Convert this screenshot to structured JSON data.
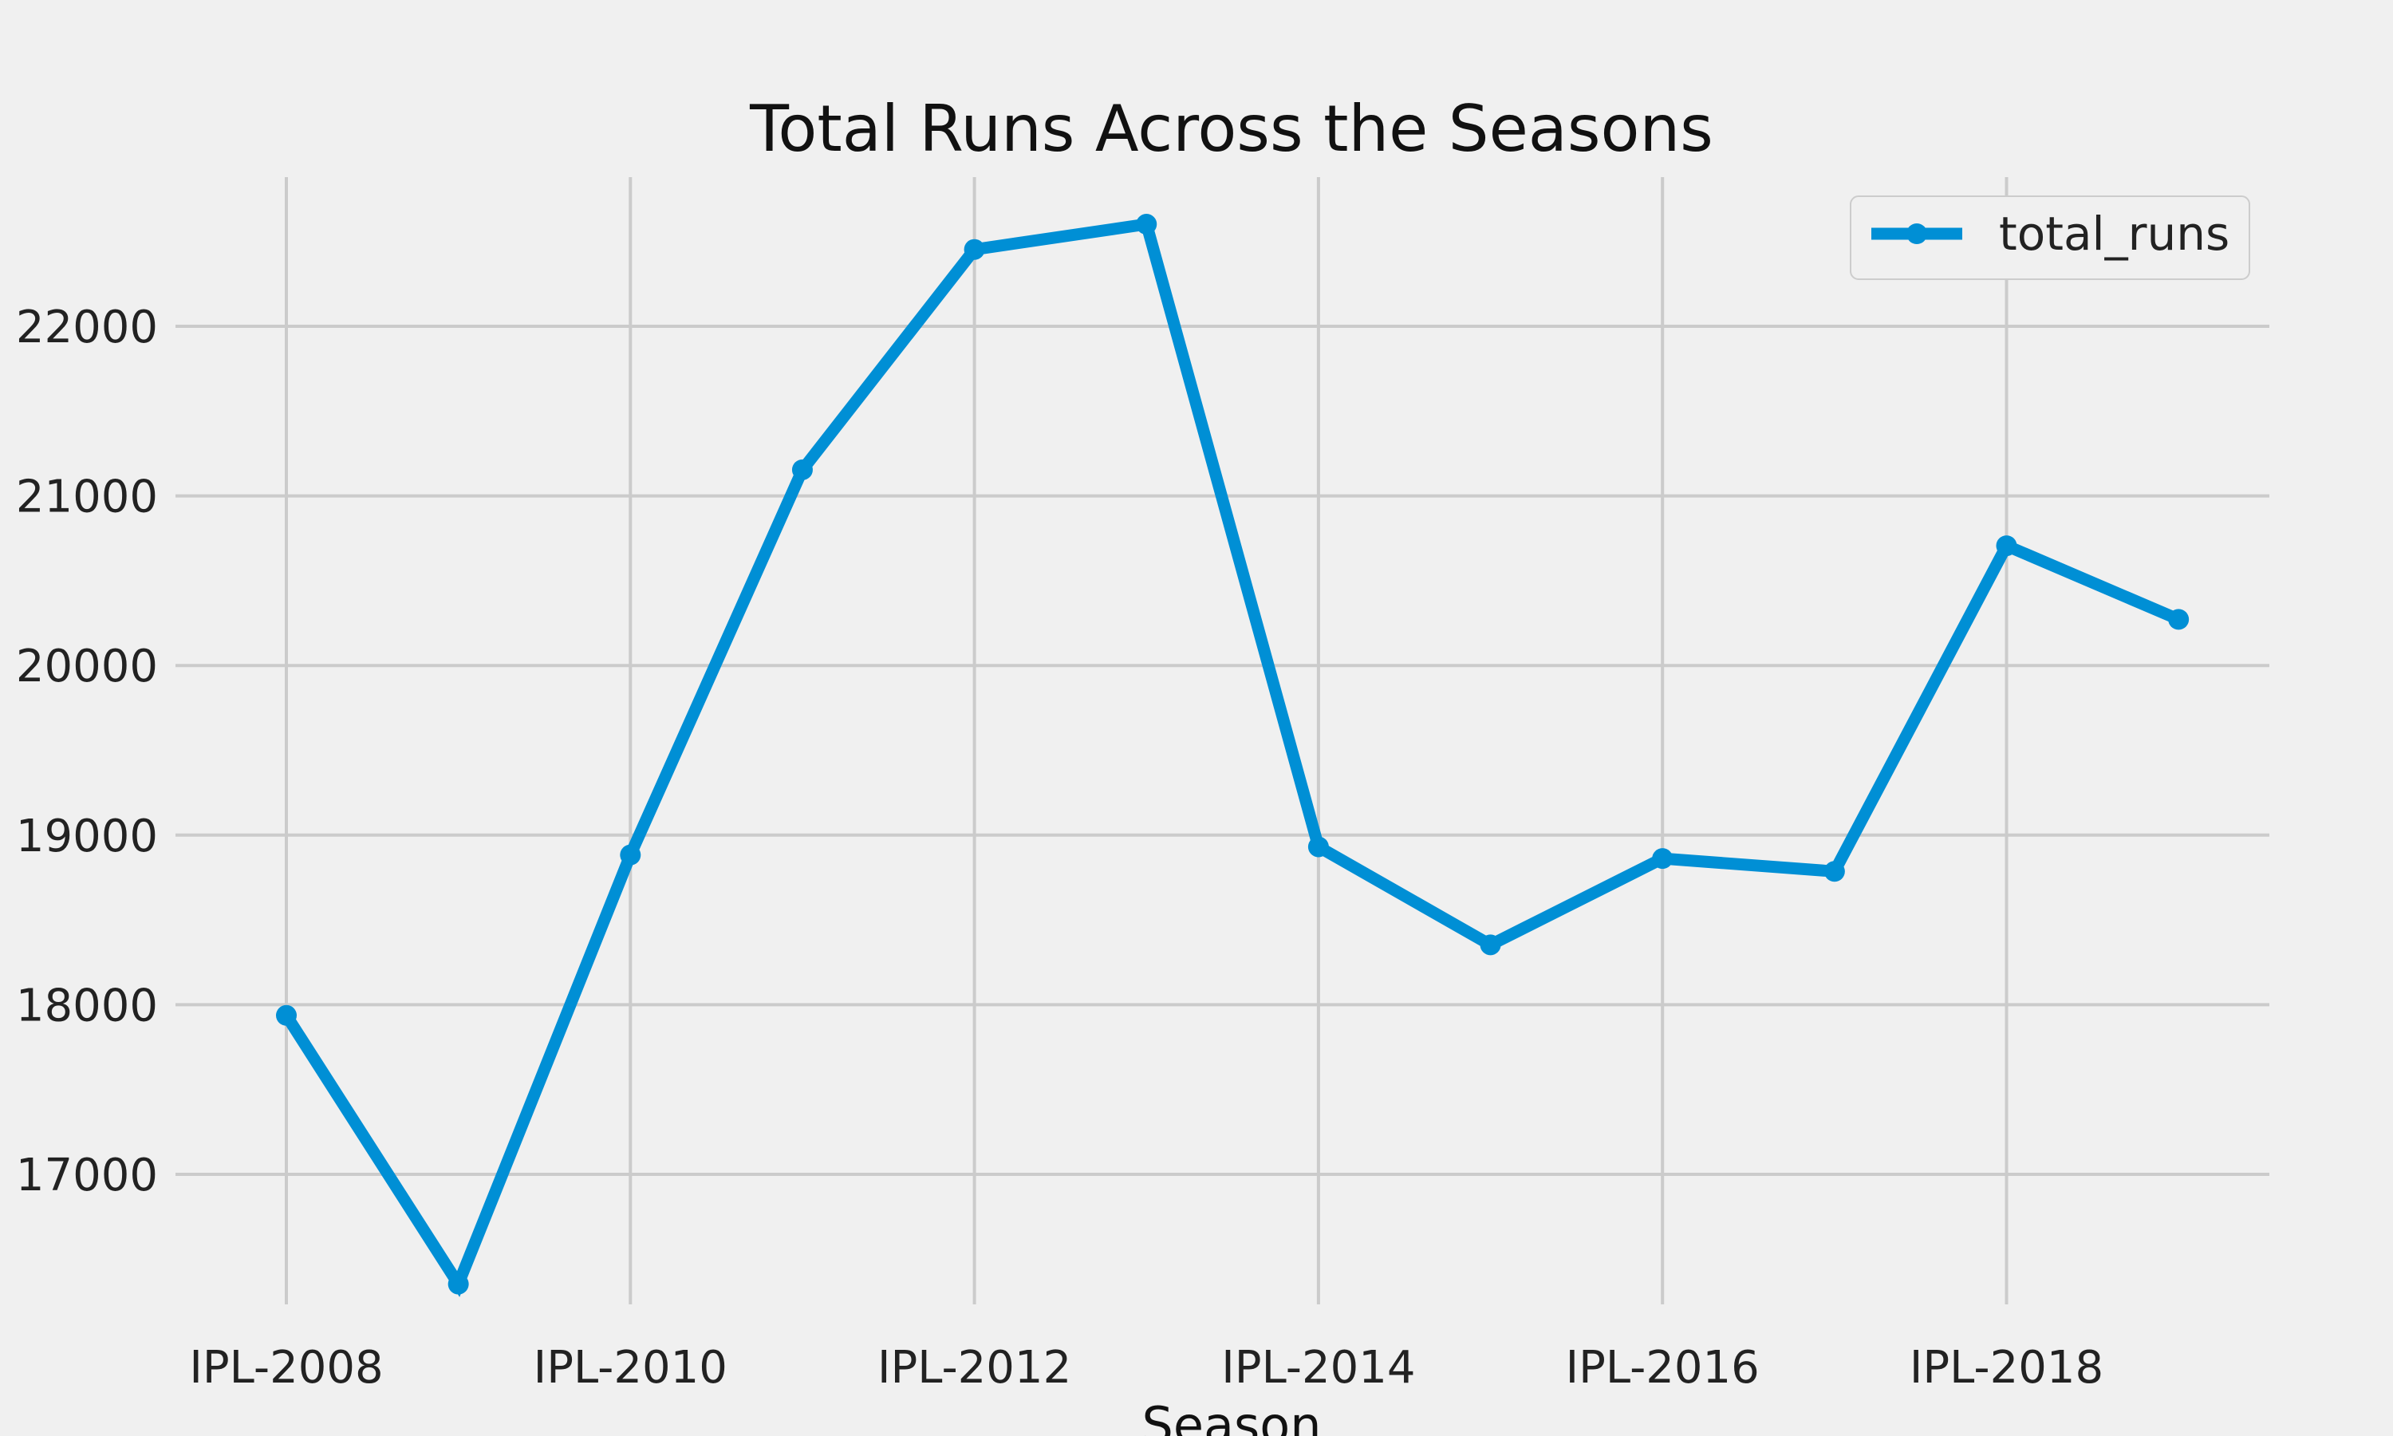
{
  "chart_data": {
    "type": "line",
    "title": "Total Runs Across the Seasons",
    "xlabel": "Season",
    "ylabel": "",
    "categories": [
      "IPL-2008",
      "IPL-2009",
      "IPL-2010",
      "IPL-2011",
      "IPL-2012",
      "IPL-2013",
      "IPL-2014",
      "IPL-2015",
      "IPL-2016",
      "IPL-2017",
      "IPL-2018",
      "IPL-2019"
    ],
    "x_tick_labels": [
      "IPL-2008",
      "IPL-2010",
      "IPL-2012",
      "IPL-2014",
      "IPL-2016",
      "IPL-2018"
    ],
    "y_ticks": [
      17000,
      18000,
      19000,
      20000,
      21000,
      22000
    ],
    "ylim": [
      16100,
      22900
    ],
    "series": [
      {
        "name": "total_runs",
        "values": [
          17937,
          16353,
          18883,
          21154,
          22453,
          22602,
          18931,
          18353,
          18862,
          18786,
          20706,
          20272
        ]
      }
    ],
    "legend": {
      "position": "top-right",
      "entries": [
        "total_runs"
      ]
    },
    "grid": true,
    "colors": {
      "series": "#008fd5",
      "grid": "#cbcbcb",
      "background": "#f0f0f0"
    }
  }
}
